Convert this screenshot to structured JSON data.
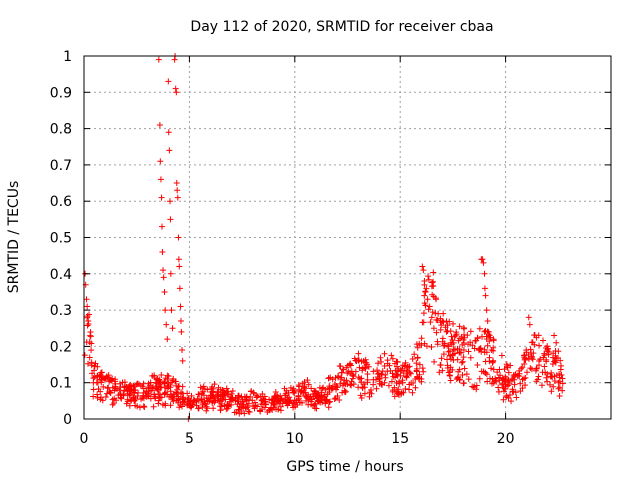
{
  "chart_data": {
    "type": "scatter",
    "title": "Day 112 of 2020, SRMTID for receiver cbaa",
    "xlabel": "GPS time / hours",
    "ylabel": "SRMTID / TECUs",
    "xlim": [
      0,
      25
    ],
    "ylim": [
      0,
      1
    ],
    "xticks": [
      0,
      5,
      10,
      15,
      20
    ],
    "xtick_labels": [
      "0",
      "5",
      "10",
      "15",
      "20"
    ],
    "yticks": [
      0,
      0.1,
      0.2,
      0.3,
      0.4,
      0.5,
      0.6,
      0.7,
      0.8,
      0.9,
      1
    ],
    "ytick_labels": [
      "0",
      "0.1",
      "0.2",
      "0.3",
      "0.4",
      "0.5",
      "0.6",
      "0.7",
      "0.8",
      "0.9",
      "1"
    ],
    "grid": true,
    "marker": "+",
    "series": [
      {
        "name": "SRMTID",
        "color": "#ff0000",
        "profile": [
          [
            0.0,
            0.14
          ],
          [
            0.1,
            0.28
          ],
          [
            0.2,
            0.22
          ],
          [
            0.4,
            0.12
          ],
          [
            0.7,
            0.09
          ],
          [
            1.0,
            0.08
          ],
          [
            1.5,
            0.08
          ],
          [
            2.0,
            0.07
          ],
          [
            2.5,
            0.06
          ],
          [
            3.0,
            0.07
          ],
          [
            3.5,
            0.08
          ],
          [
            4.5,
            0.07
          ],
          [
            5.0,
            0.04
          ],
          [
            5.5,
            0.05
          ],
          [
            6.0,
            0.06
          ],
          [
            6.5,
            0.05
          ],
          [
            7.0,
            0.05
          ],
          [
            7.5,
            0.04
          ],
          [
            8.0,
            0.05
          ],
          [
            8.5,
            0.04
          ],
          [
            9.0,
            0.04
          ],
          [
            9.5,
            0.05
          ],
          [
            10.0,
            0.06
          ],
          [
            10.5,
            0.07
          ],
          [
            11.0,
            0.05
          ],
          [
            11.5,
            0.07
          ],
          [
            12.0,
            0.09
          ],
          [
            12.5,
            0.12
          ],
          [
            13.0,
            0.12
          ],
          [
            13.5,
            0.11
          ],
          [
            14.0,
            0.12
          ],
          [
            14.5,
            0.11
          ],
          [
            15.0,
            0.1
          ],
          [
            15.5,
            0.11
          ],
          [
            16.0,
            0.18
          ],
          [
            16.3,
            0.3
          ],
          [
            16.6,
            0.27
          ],
          [
            17.0,
            0.2
          ],
          [
            17.5,
            0.17
          ],
          [
            18.0,
            0.17
          ],
          [
            18.5,
            0.15
          ],
          [
            19.0,
            0.17
          ],
          [
            19.5,
            0.15
          ],
          [
            20.0,
            0.1
          ],
          [
            20.5,
            0.09
          ],
          [
            21.0,
            0.14
          ],
          [
            21.5,
            0.16
          ],
          [
            22.0,
            0.14
          ],
          [
            22.5,
            0.12
          ],
          [
            22.75,
            0.1
          ]
        ],
        "n_points": 1200,
        "highlight_points": [
          [
            0.05,
            0.4
          ],
          [
            0.08,
            0.37
          ],
          [
            0.12,
            0.33
          ],
          [
            0.15,
            0.31
          ],
          [
            0.2,
            0.27
          ],
          [
            3.55,
            0.99
          ],
          [
            3.6,
            0.81
          ],
          [
            3.62,
            0.71
          ],
          [
            3.65,
            0.66
          ],
          [
            3.68,
            0.61
          ],
          [
            3.7,
            0.53
          ],
          [
            3.72,
            0.46
          ],
          [
            3.75,
            0.41
          ],
          [
            3.78,
            0.39
          ],
          [
            3.82,
            0.35
          ],
          [
            3.85,
            0.3
          ],
          [
            3.9,
            0.26
          ],
          [
            3.95,
            0.22
          ],
          [
            4.0,
            0.93
          ],
          [
            4.02,
            0.79
          ],
          [
            4.05,
            0.74
          ],
          [
            4.08,
            0.6
          ],
          [
            4.1,
            0.55
          ],
          [
            4.12,
            0.4
          ],
          [
            4.15,
            0.3
          ],
          [
            4.2,
            0.25
          ],
          [
            4.3,
            0.99
          ],
          [
            4.32,
            1.0
          ],
          [
            4.35,
            0.91
          ],
          [
            4.38,
            0.9
          ],
          [
            4.4,
            0.65
          ],
          [
            4.42,
            0.63
          ],
          [
            4.45,
            0.61
          ],
          [
            4.48,
            0.5
          ],
          [
            4.5,
            0.44
          ],
          [
            4.52,
            0.42
          ],
          [
            4.55,
            0.36
          ],
          [
            4.58,
            0.31
          ],
          [
            4.6,
            0.27
          ],
          [
            4.62,
            0.24
          ],
          [
            4.65,
            0.19
          ],
          [
            4.68,
            0.16
          ],
          [
            4.95,
            0.0
          ],
          [
            16.05,
            0.42
          ],
          [
            16.1,
            0.41
          ],
          [
            16.15,
            0.38
          ],
          [
            16.2,
            0.35
          ],
          [
            16.3,
            0.33
          ],
          [
            16.4,
            0.31
          ],
          [
            16.5,
            0.28
          ],
          [
            16.6,
            0.25
          ],
          [
            16.7,
            0.33
          ],
          [
            16.8,
            0.29
          ],
          [
            17.0,
            0.27
          ],
          [
            17.2,
            0.24
          ],
          [
            17.4,
            0.21
          ],
          [
            17.6,
            0.19
          ],
          [
            18.85,
            0.44
          ],
          [
            18.9,
            0.44
          ],
          [
            18.95,
            0.43
          ],
          [
            19.0,
            0.4
          ],
          [
            19.02,
            0.36
          ],
          [
            19.05,
            0.34
          ],
          [
            19.1,
            0.3
          ],
          [
            19.15,
            0.27
          ],
          [
            19.2,
            0.24
          ],
          [
            21.1,
            0.28
          ],
          [
            21.15,
            0.26
          ],
          [
            22.3,
            0.23
          ],
          [
            22.4,
            0.21
          ]
        ]
      }
    ]
  }
}
